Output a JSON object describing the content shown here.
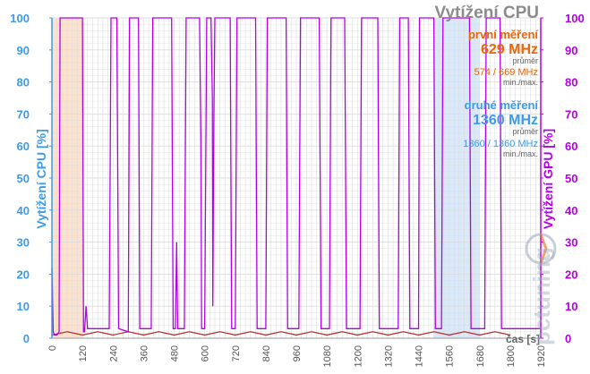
{
  "chart_data": {
    "type": "line",
    "title": "Vytížení CPU",
    "ylabel_left": "Vytížení CPU [%]",
    "ylabel_right": "Vytížení GPU [%]",
    "xlabel": "čas [s]",
    "xlim": [
      0,
      1920
    ],
    "ylim": [
      0,
      100
    ],
    "x_ticks": [
      "0",
      "120",
      "240",
      "360",
      "480",
      "600",
      "720",
      "840",
      "960",
      "1080",
      "1200",
      "1320",
      "1440",
      "1560",
      "1680",
      "1800",
      "1920"
    ],
    "y_ticks": [
      "0",
      "10",
      "20",
      "30",
      "40",
      "50",
      "60",
      "70",
      "80",
      "90",
      "100"
    ],
    "grid": true,
    "highlight_regions": [
      {
        "x": [
          0,
          120
        ],
        "color": "#fbd9bf"
      },
      {
        "x": [
          1500,
          1680
        ],
        "color": "#cfe4f7"
      }
    ],
    "series": [
      {
        "name": "GPU",
        "color": "#b400e6",
        "axis": "right",
        "points": [
          [
            0,
            22
          ],
          [
            5,
            2
          ],
          [
            10,
            1
          ],
          [
            20,
            1
          ],
          [
            28,
            2
          ],
          [
            32,
            100
          ],
          [
            120,
            100
          ],
          [
            124,
            2
          ],
          [
            128,
            2
          ],
          [
            134,
            10
          ],
          [
            140,
            3
          ],
          [
            225,
            3
          ],
          [
            232,
            100
          ],
          [
            255,
            100
          ],
          [
            262,
            3
          ],
          [
            300,
            2
          ],
          [
            305,
            100
          ],
          [
            340,
            100
          ],
          [
            345,
            3
          ],
          [
            390,
            3
          ],
          [
            396,
            100
          ],
          [
            470,
            100
          ],
          [
            476,
            3
          ],
          [
            485,
            3
          ],
          [
            490,
            30
          ],
          [
            494,
            3
          ],
          [
            520,
            3
          ],
          [
            527,
            100
          ],
          [
            580,
            100
          ],
          [
            585,
            62
          ],
          [
            588,
            3
          ],
          [
            600,
            3
          ],
          [
            608,
            100
          ],
          [
            625,
            100
          ],
          [
            630,
            75
          ],
          [
            632,
            10
          ],
          [
            636,
            70
          ],
          [
            640,
            100
          ],
          [
            700,
            100
          ],
          [
            706,
            3
          ],
          [
            720,
            3
          ],
          [
            727,
            100
          ],
          [
            800,
            100
          ],
          [
            806,
            3
          ],
          [
            840,
            3
          ],
          [
            846,
            100
          ],
          [
            920,
            100
          ],
          [
            926,
            3
          ],
          [
            970,
            3
          ],
          [
            976,
            100
          ],
          [
            1050,
            100
          ],
          [
            1057,
            3
          ],
          [
            1090,
            3
          ],
          [
            1096,
            100
          ],
          [
            1150,
            100
          ],
          [
            1157,
            3
          ],
          [
            1210,
            3
          ],
          [
            1216,
            100
          ],
          [
            1280,
            100
          ],
          [
            1286,
            3
          ],
          [
            1360,
            3
          ],
          [
            1366,
            100
          ],
          [
            1400,
            100
          ],
          [
            1406,
            3
          ],
          [
            1440,
            3
          ],
          [
            1444,
            100
          ],
          [
            1500,
            100
          ],
          [
            1506,
            3
          ],
          [
            1530,
            3
          ],
          [
            1536,
            100
          ],
          [
            1640,
            100
          ],
          [
            1646,
            3
          ],
          [
            1700,
            3
          ],
          [
            1706,
            100
          ],
          [
            1760,
            100
          ],
          [
            1766,
            3
          ],
          [
            1920,
            3
          ]
        ]
      },
      {
        "name": "CPU",
        "color": "#c03030",
        "axis": "left",
        "points": [
          [
            0,
            1
          ],
          [
            60,
            2
          ],
          [
            120,
            1
          ],
          [
            180,
            2
          ],
          [
            240,
            1
          ],
          [
            300,
            2
          ],
          [
            360,
            1
          ],
          [
            420,
            2
          ],
          [
            480,
            1
          ],
          [
            540,
            2
          ],
          [
            600,
            1
          ],
          [
            660,
            2
          ],
          [
            720,
            1
          ],
          [
            780,
            2
          ],
          [
            840,
            1
          ],
          [
            900,
            2
          ],
          [
            960,
            1
          ],
          [
            1020,
            2
          ],
          [
            1080,
            1
          ],
          [
            1140,
            2
          ],
          [
            1200,
            1
          ],
          [
            1260,
            2
          ],
          [
            1320,
            1
          ],
          [
            1380,
            2
          ],
          [
            1440,
            1
          ],
          [
            1500,
            2
          ],
          [
            1560,
            1
          ],
          [
            1620,
            2
          ],
          [
            1680,
            1
          ],
          [
            1740,
            2
          ],
          [
            1800,
            1
          ]
        ]
      }
    ]
  },
  "info": {
    "title": "Vytížení CPU",
    "run1_label": "první měření",
    "run1_freq": "629 MHz",
    "run1_avg_label": "průměr",
    "run1_range": "574 / 669 MHz",
    "run1_minmax_label": "min./max.",
    "run2_label": "druhé měření",
    "run2_freq": "1360 MHz",
    "run2_avg_label": "průměr",
    "run2_range": "1360 / 1360 MHz",
    "run2_minmax_label": "min./max."
  },
  "colors": {
    "left_axis": "#3d9be9",
    "right_axis": "#b400e6",
    "grid": "#dddddd",
    "run1": "#e8650a",
    "run2": "#3d9be9"
  },
  "logo": {
    "text": "pctuning"
  }
}
